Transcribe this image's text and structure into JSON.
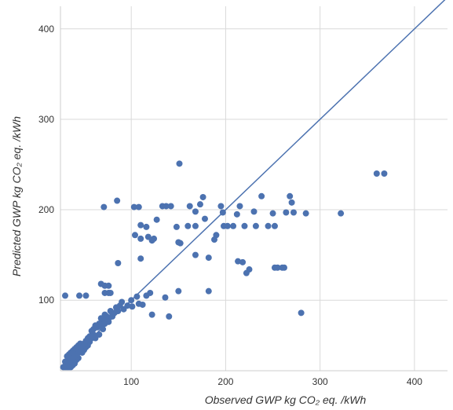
{
  "chart_data": {
    "type": "scatter",
    "xlabel": "Observed GWP kg CO₂ eq. /kWh",
    "ylabel": "Predicted GWP kg CO₂ eq. /kWh",
    "xlim": [
      25,
      435
    ],
    "ylim": [
      22,
      425
    ],
    "x_ticks": [
      100,
      200,
      300,
      400
    ],
    "y_ticks": [
      100,
      200,
      300,
      400
    ],
    "grid": true,
    "point_color": "#4c72b0",
    "line_color": "#4c72b0",
    "reference_line": {
      "x": [
        25,
        435
      ],
      "y": [
        25,
        435
      ]
    },
    "points": [
      [
        30,
        105
      ],
      [
        45,
        105
      ],
      [
        52,
        105
      ],
      [
        71,
        203
      ],
      [
        85,
        210
      ],
      [
        86,
        141
      ],
      [
        103,
        203
      ],
      [
        108,
        203
      ],
      [
        104,
        172
      ],
      [
        110,
        168
      ],
      [
        110,
        146
      ],
      [
        110,
        183
      ],
      [
        116,
        181
      ],
      [
        118,
        170
      ],
      [
        122,
        166
      ],
      [
        124,
        168
      ],
      [
        127,
        189
      ],
      [
        133,
        204
      ],
      [
        137,
        204
      ],
      [
        142,
        204
      ],
      [
        148,
        181
      ],
      [
        150,
        164
      ],
      [
        151,
        251
      ],
      [
        152,
        163
      ],
      [
        160,
        182
      ],
      [
        162,
        204
      ],
      [
        168,
        198
      ],
      [
        168,
        182
      ],
      [
        168,
        150
      ],
      [
        173,
        206
      ],
      [
        176,
        214
      ],
      [
        178,
        190
      ],
      [
        182,
        147
      ],
      [
        188,
        167
      ],
      [
        190,
        172
      ],
      [
        195,
        204
      ],
      [
        197,
        197
      ],
      [
        198,
        182
      ],
      [
        202,
        182
      ],
      [
        208,
        182
      ],
      [
        212,
        195
      ],
      [
        213,
        143
      ],
      [
        215,
        204
      ],
      [
        218,
        142
      ],
      [
        220,
        182
      ],
      [
        222,
        130
      ],
      [
        225,
        134
      ],
      [
        230,
        198
      ],
      [
        232,
        182
      ],
      [
        238,
        215
      ],
      [
        245,
        182
      ],
      [
        250,
        196
      ],
      [
        252,
        182
      ],
      [
        252,
        136
      ],
      [
        255,
        136
      ],
      [
        260,
        136
      ],
      [
        262,
        136
      ],
      [
        264,
        197
      ],
      [
        268,
        215
      ],
      [
        270,
        208
      ],
      [
        272,
        197
      ],
      [
        280,
        86
      ],
      [
        285,
        196
      ],
      [
        322,
        196
      ],
      [
        360,
        240
      ],
      [
        368,
        240
      ],
      [
        182,
        110
      ],
      [
        122,
        84
      ],
      [
        120,
        108
      ],
      [
        116,
        105
      ],
      [
        106,
        104
      ],
      [
        108,
        96
      ],
      [
        112,
        95
      ],
      [
        100,
        100
      ],
      [
        101,
        93
      ],
      [
        96,
        94
      ],
      [
        92,
        90
      ],
      [
        90,
        98
      ],
      [
        86,
        88
      ],
      [
        88,
        94
      ],
      [
        84,
        92
      ],
      [
        82,
        86
      ],
      [
        80,
        85
      ],
      [
        80,
        82
      ],
      [
        78,
        88
      ],
      [
        76,
        80
      ],
      [
        74,
        82
      ],
      [
        72,
        84
      ],
      [
        70,
        78
      ],
      [
        68,
        80
      ],
      [
        68,
        73
      ],
      [
        66,
        74
      ],
      [
        64,
        70
      ],
      [
        62,
        72
      ],
      [
        60,
        68
      ],
      [
        60,
        62
      ],
      [
        58,
        66
      ],
      [
        58,
        58
      ],
      [
        56,
        60
      ],
      [
        56,
        54
      ],
      [
        54,
        58
      ],
      [
        54,
        50
      ],
      [
        52,
        55
      ],
      [
        52,
        48
      ],
      [
        50,
        52
      ],
      [
        50,
        45
      ],
      [
        48,
        50
      ],
      [
        48,
        42
      ],
      [
        46,
        52
      ],
      [
        46,
        46
      ],
      [
        44,
        50
      ],
      [
        44,
        42
      ],
      [
        44,
        36
      ],
      [
        42,
        48
      ],
      [
        42,
        40
      ],
      [
        42,
        34
      ],
      [
        40,
        46
      ],
      [
        40,
        38
      ],
      [
        40,
        30
      ],
      [
        38,
        44
      ],
      [
        38,
        36
      ],
      [
        38,
        28
      ],
      [
        36,
        42
      ],
      [
        36,
        34
      ],
      [
        36,
        26
      ],
      [
        34,
        40
      ],
      [
        34,
        32
      ],
      [
        34,
        26
      ],
      [
        32,
        38
      ],
      [
        32,
        30
      ],
      [
        32,
        26
      ],
      [
        30,
        32
      ],
      [
        30,
        26
      ],
      [
        28,
        26
      ],
      [
        62,
        58
      ],
      [
        66,
        62
      ],
      [
        70,
        68
      ],
      [
        72,
        74
      ],
      [
        76,
        76
      ],
      [
        68,
        118
      ],
      [
        72,
        116
      ],
      [
        76,
        116
      ],
      [
        72,
        108
      ],
      [
        76,
        108
      ],
      [
        78,
        108
      ],
      [
        140,
        82
      ],
      [
        150,
        110
      ],
      [
        136,
        103
      ]
    ]
  }
}
